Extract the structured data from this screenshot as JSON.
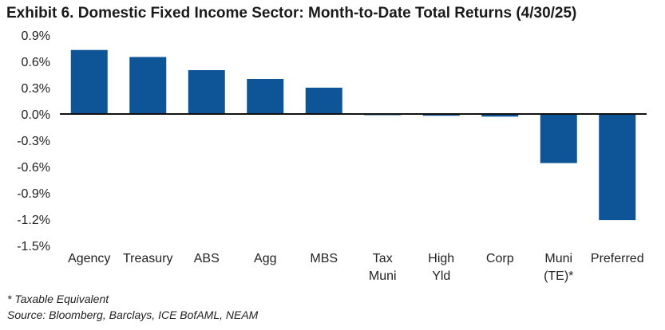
{
  "chart_data": {
    "type": "bar",
    "title": "Exhibit 6. Domestic Fixed Income Sector: Month-to-Date Total Returns (4/30/25)",
    "categories": [
      "Agency",
      "Treasury",
      "ABS",
      "Agg",
      "MBS",
      "Tax Muni",
      "High Yld",
      "Corp",
      "Muni (TE)*",
      "Preferred"
    ],
    "category_lines": [
      [
        "Agency"
      ],
      [
        "Treasury"
      ],
      [
        "ABS"
      ],
      [
        "Agg"
      ],
      [
        "MBS"
      ],
      [
        "Tax",
        "Muni"
      ],
      [
        "High",
        "Yld"
      ],
      [
        "Corp"
      ],
      [
        "Muni",
        "(TE)*"
      ],
      [
        "Preferred"
      ]
    ],
    "values": [
      0.73,
      0.65,
      0.5,
      0.4,
      0.3,
      -0.01,
      -0.02,
      -0.03,
      -0.56,
      -1.21
    ],
    "yticks": [
      0.9,
      0.6,
      0.3,
      0.0,
      -0.3,
      -0.6,
      -0.9,
      -1.2,
      -1.5
    ],
    "ytick_labels": [
      "0.9%",
      "0.6%",
      "0.3%",
      "0.0%",
      "-0.3%",
      "-0.6%",
      "-0.9%",
      "-1.2%",
      "-1.5%"
    ],
    "ylim": [
      -1.5,
      0.9
    ],
    "xlabel": "",
    "ylabel": "",
    "bar_color": "#0d5596"
  },
  "footnotes": {
    "note": "* Taxable Equivalent",
    "source": "Source: Bloomberg, Barclays, ICE BofAML, NEAM"
  }
}
